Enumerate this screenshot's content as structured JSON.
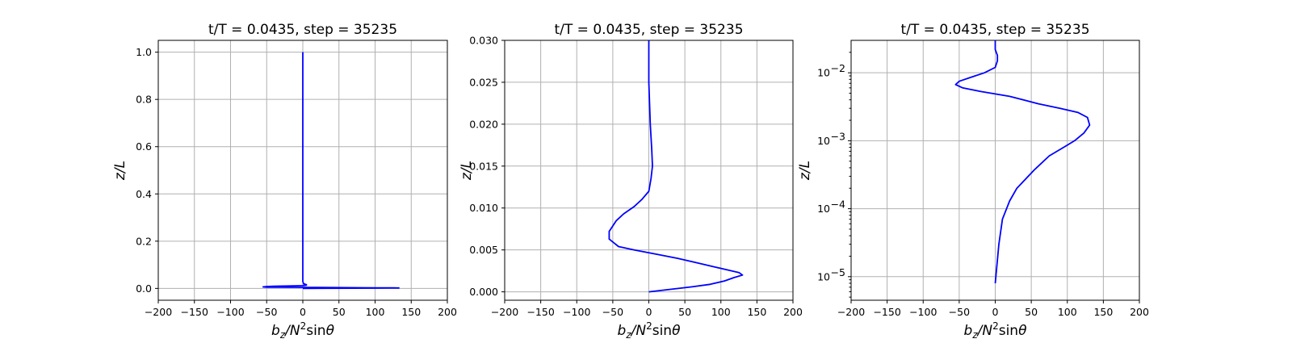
{
  "chart_data": [
    {
      "type": "line",
      "title": "t/T = 0.0435, step = 35235",
      "xlabel": "b_z/N^2 sinθ",
      "ylabel": "z/L",
      "xlim": [
        -200,
        200
      ],
      "ylim": [
        -0.05,
        1.05
      ],
      "yscale": "linear",
      "grid": true,
      "xticks": [
        -200,
        -150,
        -100,
        -50,
        0,
        50,
        100,
        150,
        200
      ],
      "xtick_labels": [
        "−200",
        "−150",
        "−100",
        "−50",
        "0",
        "50",
        "100",
        "150",
        "200"
      ],
      "yticks": [
        0.0,
        0.2,
        0.4,
        0.6,
        0.8,
        1.0
      ],
      "ytick_labels": [
        "0.0",
        "0.2",
        "0.4",
        "0.6",
        "0.8",
        "1.0"
      ],
      "series": [
        {
          "color": "#0000ff",
          "x": [
            0,
            30,
            70,
            100,
            120,
            130,
            133,
            125,
            100,
            60,
            20,
            -5,
            -30,
            -50,
            -55,
            -50,
            -40,
            -25,
            -10,
            0,
            5,
            5,
            3,
            1,
            0,
            0,
            0,
            0
          ],
          "y": [
            0,
            0.0005,
            0.0009,
            0.0012,
            0.0015,
            0.0017,
            0.0019,
            0.0022,
            0.0026,
            0.0032,
            0.004,
            0.0045,
            0.005,
            0.0055,
            0.0065,
            0.008,
            0.009,
            0.01,
            0.011,
            0.012,
            0.014,
            0.016,
            0.018,
            0.02,
            0.03,
            0.1,
            0.5,
            1.0
          ]
        }
      ]
    },
    {
      "type": "line",
      "title": "t/T = 0.0435, step = 35235",
      "xlabel": "b_z/N^2 sinθ",
      "ylabel": "z/L",
      "xlim": [
        -200,
        200
      ],
      "ylim": [
        -0.001,
        0.03
      ],
      "yscale": "linear",
      "grid": true,
      "xticks": [
        -200,
        -150,
        -100,
        -50,
        0,
        50,
        100,
        150,
        200
      ],
      "xtick_labels": [
        "−200",
        "−150",
        "−100",
        "−50",
        "0",
        "50",
        "100",
        "150",
        "200"
      ],
      "yticks": [
        0.0,
        0.005,
        0.01,
        0.015,
        0.02,
        0.025,
        0.03
      ],
      "ytick_labels": [
        "0.000",
        "0.005",
        "0.010",
        "0.015",
        "0.020",
        "0.025",
        "0.030"
      ],
      "series": [
        {
          "color": "#0000ff",
          "x": [
            0,
            30,
            60,
            85,
            105,
            118,
            130,
            125,
            110,
            90,
            65,
            40,
            10,
            -20,
            -42,
            -55,
            -55,
            -45,
            -35,
            -20,
            -10,
            0,
            3,
            5,
            4,
            2,
            0,
            0
          ],
          "y": [
            0,
            0.0003,
            0.0006,
            0.0009,
            0.0013,
            0.0017,
            0.002,
            0.0023,
            0.0026,
            0.003,
            0.0035,
            0.004,
            0.0045,
            0.005,
            0.0054,
            0.0063,
            0.0072,
            0.0085,
            0.0093,
            0.0102,
            0.011,
            0.012,
            0.0135,
            0.015,
            0.017,
            0.02,
            0.025,
            0.03
          ]
        }
      ]
    },
    {
      "type": "line",
      "title": "t/T = 0.0435, step = 35235",
      "xlabel": "b_z/N^2 sinθ",
      "ylabel": "z/L",
      "xlim": [
        -200,
        200
      ],
      "ylim": [
        4.5e-06,
        0.03
      ],
      "yscale": "log",
      "grid": true,
      "xticks": [
        -200,
        -150,
        -100,
        -50,
        0,
        50,
        100,
        150,
        200
      ],
      "xtick_labels": [
        "−200",
        "−150",
        "−100",
        "−50",
        "0",
        "50",
        "100",
        "150",
        "200"
      ],
      "yticks": [
        1e-05,
        0.0001,
        0.001,
        0.01
      ],
      "ytick_labels": [
        "10",
        "10",
        "10",
        "10"
      ],
      "ytick_exponents": [
        "−5",
        "−4",
        "−3",
        "−2"
      ],
      "series": [
        {
          "color": "#0000ff",
          "x": [
            0,
            5,
            10,
            20,
            30,
            55,
            75,
            95,
            110,
            123,
            131,
            128,
            115,
            90,
            60,
            20,
            -20,
            -45,
            -55,
            -50,
            -35,
            -15,
            0,
            3,
            3,
            0,
            0
          ],
          "y": [
            8e-06,
            3e-05,
            7e-05,
            0.00013,
            0.0002,
            0.00038,
            0.0006,
            0.0008,
            0.001,
            0.0013,
            0.0017,
            0.0022,
            0.0026,
            0.003,
            0.0035,
            0.0045,
            0.0053,
            0.006,
            0.0067,
            0.0075,
            0.0085,
            0.01,
            0.012,
            0.015,
            0.018,
            0.022,
            0.03
          ]
        }
      ]
    }
  ]
}
